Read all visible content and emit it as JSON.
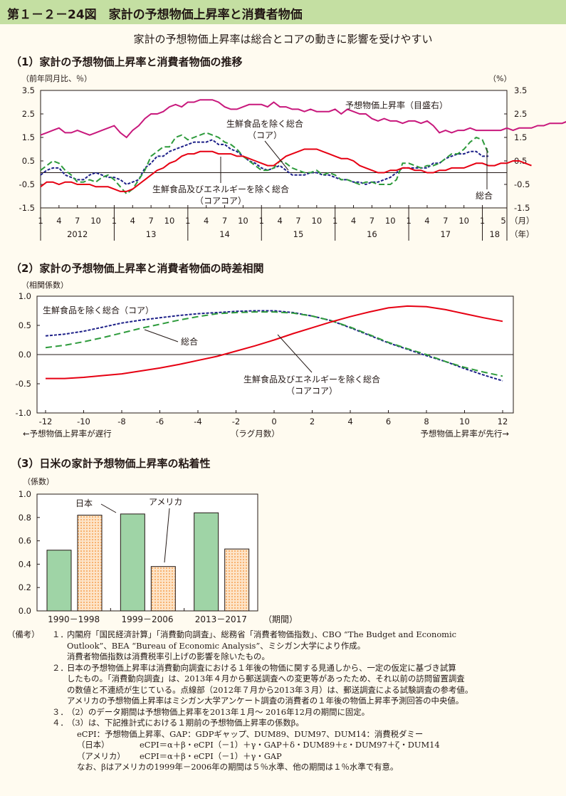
{
  "header": {
    "title": "第１－２－24図　家計の予想物価上昇率と消費者物価",
    "subtitle": "家計の予想物価上昇率は総合とコアの動きに影響を受けやすい"
  },
  "colors": {
    "title_bg": "#c4dfa2",
    "pink": "#c8187c",
    "red": "#e60012",
    "blue": "#1d2088",
    "green": "#2e9b3c",
    "bar_japan": "#9fd4a6",
    "bar_us": "#f6a254"
  },
  "chart_data": [
    {
      "type": "line",
      "section_title": "（1）家計の予想物価上昇率と消費者物価の推移",
      "ylabel_left": "（前年同月比、％）",
      "ylabel_right": "（%）",
      "ylim": [
        -1.5,
        3.5
      ],
      "y_ticks": [
        "3.5",
        "2.5",
        "1.5",
        "0.5",
        "-0.5",
        "-1.5"
      ],
      "x_month_ticks": [
        "1",
        "4",
        "7",
        "10",
        "1",
        "4",
        "7",
        "10",
        "1",
        "4",
        "7",
        "10",
        "1",
        "4",
        "7",
        "10",
        "1",
        "4",
        "7",
        "10",
        "1",
        "4",
        "7",
        "10",
        "1",
        "5"
      ],
      "x_month_unit": "（月）",
      "x_years": [
        "2012",
        "13",
        "14",
        "15",
        "16",
        "17",
        "18"
      ],
      "x_year_unit": "（年）",
      "x_start": "2012-01",
      "x_end": "2018-05",
      "annotations": {
        "expectation": "予想物価上昇率（目盛右）",
        "core_l1": "生鮮食品を除く総合",
        "core_l2": "（コア）",
        "corecore_l1": "生鮮食品及びエネルギーを除く総合",
        "corecore_l2": "（コアコア）",
        "headline": "総合"
      },
      "series": [
        {
          "name": "予想物価上昇率（目盛右）",
          "start": "2012-01",
          "values": [
            1.6,
            1.7,
            1.8,
            1.9,
            1.7,
            1.7,
            1.8,
            1.7,
            1.6,
            1.7,
            1.8,
            1.9,
            2.0,
            1.7,
            1.5,
            1.8,
            2.0,
            2.3,
            2.5,
            2.5,
            2.6,
            2.8,
            2.9,
            2.8,
            3.0,
            3.0,
            3.1,
            3.1,
            3.1,
            3.0,
            2.8,
            2.7,
            2.7,
            2.8,
            2.9,
            2.9,
            2.9,
            2.8,
            3.0,
            2.8,
            2.8,
            2.7,
            2.7,
            2.6,
            2.7,
            2.6,
            2.6,
            2.6,
            2.7,
            2.5,
            2.7,
            2.6,
            2.5,
            2.5,
            2.3,
            2.2,
            2.3,
            2.2,
            2.2,
            2.1,
            2.2,
            2.2,
            2.1,
            2.2,
            2.0,
            1.7,
            1.8,
            1.7,
            1.8,
            1.8,
            1.9,
            1.8,
            1.8,
            1.8,
            1.8,
            1.8,
            1.9,
            1.8,
            1.9,
            1.9,
            1.9,
            2.0,
            2.0,
            2.1,
            2.1,
            2.1,
            2.2,
            2.0,
            2.2,
            2.3,
            2.3,
            2.2,
            2.3,
            2.3,
            2.2,
            2.2,
            2.3,
            2.2,
            2.3,
            2.2,
            2.1,
            2.2,
            2.2,
            2.3,
            2.2,
            2.1,
            2.2,
            2.2,
            2.2,
            2.1,
            2.1,
            2.0,
            2.1,
            2.2,
            2.3,
            2.2,
            2.2,
            2.3,
            2.4,
            2.4,
            2.3,
            2.3,
            2.3,
            2.2,
            2.2,
            2.2
          ]
        },
        {
          "name": "生鮮食品を除く総合（コア）",
          "start": "2012-01",
          "values": [
            -0.1,
            0.1,
            0.2,
            0.2,
            -0.1,
            -0.2,
            -0.3,
            -0.3,
            -0.1,
            0.0,
            -0.1,
            -0.2,
            -0.2,
            -0.3,
            -0.5,
            -0.4,
            -0.3,
            0.2,
            0.4,
            0.7,
            0.7,
            0.9,
            1.0,
            1.1,
            1.2,
            1.3,
            1.3,
            1.3,
            1.4,
            1.2,
            1.2,
            1.0,
            0.9,
            0.7,
            0.5,
            0.4,
            0.2,
            0.1,
            0.2,
            0.3,
            0.1,
            -0.1,
            -0.1,
            -0.1,
            0.0,
            0.0,
            -0.1,
            -0.1,
            -0.2,
            -0.3,
            -0.3,
            -0.4,
            -0.4,
            -0.5,
            -0.4,
            -0.4,
            -0.3,
            -0.2,
            0.0,
            0.2,
            0.2,
            0.2,
            0.2,
            0.2,
            0.4,
            0.4,
            0.6,
            0.7,
            0.8,
            0.8,
            0.9,
            0.9,
            0.7,
            0.7
          ]
        },
        {
          "name": "総合",
          "start": "2012-01",
          "values": [
            0.1,
            0.3,
            0.5,
            0.4,
            0.1,
            -0.1,
            -0.4,
            -0.4,
            -0.3,
            -0.4,
            -0.2,
            -0.1,
            -0.3,
            -0.6,
            -0.9,
            -0.7,
            -0.3,
            0.1,
            0.7,
            0.9,
            1.1,
            1.1,
            1.5,
            1.6,
            1.4,
            1.5,
            1.6,
            1.7,
            1.6,
            1.5,
            1.3,
            1.2,
            1.0,
            0.7,
            0.5,
            0.3,
            0.1,
            0.1,
            0.2,
            0.5,
            0.4,
            0.2,
            0.1,
            0.0,
            0.0,
            0.1,
            -0.1,
            0.0,
            -0.1,
            -0.3,
            -0.3,
            -0.4,
            -0.5,
            -0.4,
            -0.4,
            -0.5,
            -0.5,
            -0.5,
            -0.3,
            0.4,
            0.4,
            0.3,
            0.2,
            0.3,
            0.3,
            0.4,
            0.6,
            0.8,
            0.8,
            1.0,
            1.3,
            1.5,
            1.4,
            0.8
          ]
        },
        {
          "name": "生鮮食品及びエネルギーを除く総合（コアコア）",
          "start": "2012-01",
          "values": [
            -0.6,
            -0.4,
            -0.4,
            -0.5,
            -0.4,
            -0.4,
            -0.5,
            -0.5,
            -0.5,
            -0.6,
            -0.6,
            -0.6,
            -0.7,
            -0.8,
            -0.8,
            -0.7,
            -0.5,
            -0.3,
            -0.1,
            0.1,
            0.2,
            0.4,
            0.5,
            0.7,
            0.8,
            0.8,
            0.9,
            0.9,
            0.9,
            0.8,
            0.8,
            0.8,
            0.7,
            0.7,
            0.6,
            0.5,
            0.4,
            0.3,
            0.3,
            0.5,
            0.7,
            0.8,
            0.9,
            1.0,
            1.0,
            1.0,
            0.9,
            0.8,
            0.7,
            0.6,
            0.6,
            0.5,
            0.3,
            0.2,
            0.1,
            0.0,
            0.0,
            0.1,
            0.1,
            0.2,
            0.2,
            0.1,
            0.1,
            0.0,
            0.0,
            0.1,
            0.1,
            0.2,
            0.2,
            0.2,
            0.3,
            0.4,
            0.4,
            0.3,
            0.3,
            0.4,
            0.4,
            0.5,
            0.5,
            0.4,
            0.3
          ]
        }
      ]
    },
    {
      "type": "line",
      "section_title": "（2）家計の予想物価上昇率と消費者物価の時差相関",
      "ylabel": "（相関係数）",
      "ylim": [
        -1.0,
        1.0
      ],
      "y_ticks": [
        "1.0",
        "0.5",
        "0.0",
        "-0.5",
        "-1.0"
      ],
      "x_ticks": [
        "-12",
        "-10",
        "-8",
        "-6",
        "-4",
        "-2",
        "0",
        "2",
        "4",
        "6",
        "8",
        "10",
        "12"
      ],
      "xlabel": "（ラグ月数）",
      "note_left": "←予想物価上昇率が遅行",
      "note_right": "予想物価上昇率が先行→",
      "annotations": {
        "core": "生鮮食品を除く総合（コア）",
        "headline": "総合",
        "corecore_l1": "生鮮食品及びエネルギーを除く総合",
        "corecore_l2": "（コアコア）"
      },
      "x": [
        -12,
        -11,
        -10,
        -9,
        -8,
        -7,
        -6,
        -5,
        -4,
        -3,
        -2,
        -1,
        0,
        1,
        2,
        3,
        4,
        5,
        6,
        7,
        8,
        9,
        10,
        11,
        12
      ],
      "series": [
        {
          "name": "生鮮食品を除く総合（コア）",
          "values": [
            0.32,
            0.35,
            0.4,
            0.47,
            0.54,
            0.59,
            0.63,
            0.67,
            0.7,
            0.72,
            0.74,
            0.75,
            0.75,
            0.72,
            0.66,
            0.58,
            0.46,
            0.33,
            0.2,
            0.09,
            -0.02,
            -0.12,
            -0.24,
            -0.35,
            -0.45
          ]
        },
        {
          "name": "総合",
          "values": [
            0.12,
            0.16,
            0.22,
            0.29,
            0.37,
            0.45,
            0.52,
            0.59,
            0.65,
            0.7,
            0.72,
            0.73,
            0.73,
            0.71,
            0.66,
            0.58,
            0.47,
            0.34,
            0.21,
            0.1,
            0.0,
            -0.12,
            -0.22,
            -0.3,
            -0.37
          ]
        },
        {
          "name": "生鮮食品及びエネルギーを除く総合（コアコア）",
          "values": [
            -0.41,
            -0.41,
            -0.39,
            -0.36,
            -0.33,
            -0.28,
            -0.23,
            -0.17,
            -0.1,
            -0.03,
            0.06,
            0.15,
            0.25,
            0.36,
            0.46,
            0.56,
            0.65,
            0.73,
            0.8,
            0.83,
            0.82,
            0.77,
            0.7,
            0.63,
            0.57
          ]
        }
      ]
    },
    {
      "type": "bar",
      "section_title": "（3）日米の家計予想物価上昇率の粘着性",
      "ylabel": "（係数）",
      "ylim": [
        0.0,
        1.0
      ],
      "y_ticks": [
        "1.0",
        "0.8",
        "0.6",
        "0.4",
        "0.2",
        "0.0"
      ],
      "categories": [
        "1990－1998",
        "1999－2006",
        "2013－2017"
      ],
      "x_unit": "（期間）",
      "series": [
        {
          "name": "日本",
          "values": [
            0.52,
            0.83,
            0.84
          ]
        },
        {
          "name": "アメリカ",
          "values": [
            0.82,
            0.38,
            0.53
          ]
        }
      ]
    }
  ],
  "notes": {
    "label": "（備考）",
    "lines": [
      {
        "num": "１．",
        "text": "内閣府「国民経済計算」「消費動向調査」、総務省「消費者物価指数」、CBO “The Budget and Economic"
      },
      {
        "text": "Outlook”、BEA “Bureau of Economic Analysis”、ミシガン大学により作成。"
      },
      {
        "text": "消費者物価指数は消費税率引上げの影響を除いたもの。"
      },
      {
        "num": "２．",
        "text": "日本の予想物価上昇率は消費動向調査における１年後の物価に関する見通しから、一定の仮定に基づき試算"
      },
      {
        "text": "したもの。「消費動向調査」は、2013年４月から郵送調査への変更等があったため、それ以前の訪問留置調査"
      },
      {
        "text": "の数値と不連続が生じている。点線部（2012年７月から2013年３月）は、郵送調査による試験調査の参考値。"
      },
      {
        "text": "アメリカの予想物価上昇率はミシガン大学アンケート調査の消費者の１年後の物価上昇率予測回答の中央値。"
      },
      {
        "num": "３．",
        "text": "（2）のデータ期間は予想物価上昇率を2013年１月～ 2016年12月の期間に固定。"
      },
      {
        "num": "４．",
        "text": "（3）は、下記推計式における１期前の予想物価上昇率の係数β。"
      },
      {
        "text": "eCPI：予想物価上昇率、GAP：GDPギャップ、DUM89、DUM97、DUM14：消費税ダミー",
        "indent": 2
      },
      {
        "label": "（日本）",
        "text": "eCPI＝α＋β・eCPI（－1）＋γ・GAP＋δ・DUM89＋ε・DUM97＋ζ・DUM14"
      },
      {
        "label": "（アメリカ）",
        "text": "eCPI＝α＋β・eCPI（－1）＋γ・GAP"
      },
      {
        "text": "なお、βはアメリカの1999年－2006年の期間は５％水準、他の期間は１％水準で有意。",
        "indent": 2
      }
    ]
  }
}
